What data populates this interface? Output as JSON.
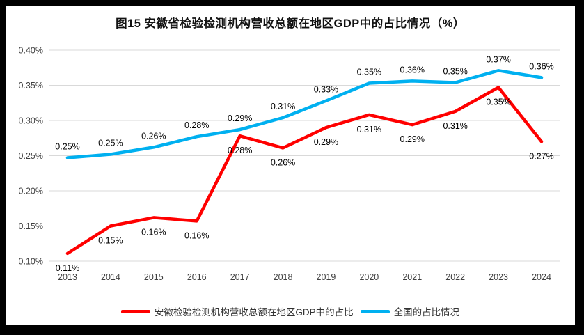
{
  "title": "图15 安徽省检验检测机构营收总额在地区GDP中的占比情况（%）",
  "colors": {
    "frame": "#000000",
    "background": "#FFFFFF",
    "gridline": "#D9D9D9",
    "axis_text": "#404040",
    "data_label_text": "#000000",
    "anhui_red": "#FF0000",
    "national_blue": "#00B0F0"
  },
  "chart_data": {
    "type": "line",
    "title": "图15 安徽省检验检测机构营收总额在地区GDP中的占比情况（%）",
    "categories": [
      "2013",
      "2014",
      "2015",
      "2016",
      "2017",
      "2018",
      "2019",
      "2020",
      "2021",
      "2022",
      "2023",
      "2024"
    ],
    "xlabel": "",
    "ylabel": "",
    "ylim": [
      0.1,
      0.4
    ],
    "ytick_step": 0.05,
    "ytick_labels_top_to_bottom": [
      "0.40%",
      "0.35%",
      "0.30%",
      "0.25%",
      "0.20%",
      "0.15%",
      "0.10%"
    ],
    "grid": true,
    "legend_position": "bottom",
    "series": [
      {
        "name": "安徽检验检测机构营收总额在地区GDP中的占比",
        "color": "#FF0000",
        "values": [
          0.11,
          0.15,
          0.16,
          0.16,
          0.28,
          0.26,
          0.29,
          0.31,
          0.29,
          0.31,
          0.35,
          0.27
        ],
        "values_precise": [
          0.111,
          0.15,
          0.162,
          0.157,
          0.278,
          0.261,
          0.29,
          0.308,
          0.294,
          0.313,
          0.347,
          0.27
        ],
        "labels": [
          "0.11%",
          "0.15%",
          "0.16%",
          "0.16%",
          "0.28%",
          "0.26%",
          "0.29%",
          "0.31%",
          "0.29%",
          "0.31%",
          "0.35%",
          "0.27%"
        ],
        "label_position": "below"
      },
      {
        "name": "全国的占比情况",
        "color": "#00B0F0",
        "values": [
          0.25,
          0.25,
          0.26,
          0.28,
          0.29,
          0.31,
          0.33,
          0.35,
          0.36,
          0.35,
          0.37,
          0.36
        ],
        "values_precise": [
          0.247,
          0.252,
          0.262,
          0.277,
          0.287,
          0.304,
          0.328,
          0.353,
          0.356,
          0.354,
          0.371,
          0.361
        ],
        "labels": [
          "0.25%",
          "0.25%",
          "0.26%",
          "0.28%",
          "0.29%",
          "0.31%",
          "0.33%",
          "0.35%",
          "0.36%",
          "0.35%",
          "0.37%",
          "0.36%"
        ],
        "label_position": "above"
      }
    ]
  }
}
